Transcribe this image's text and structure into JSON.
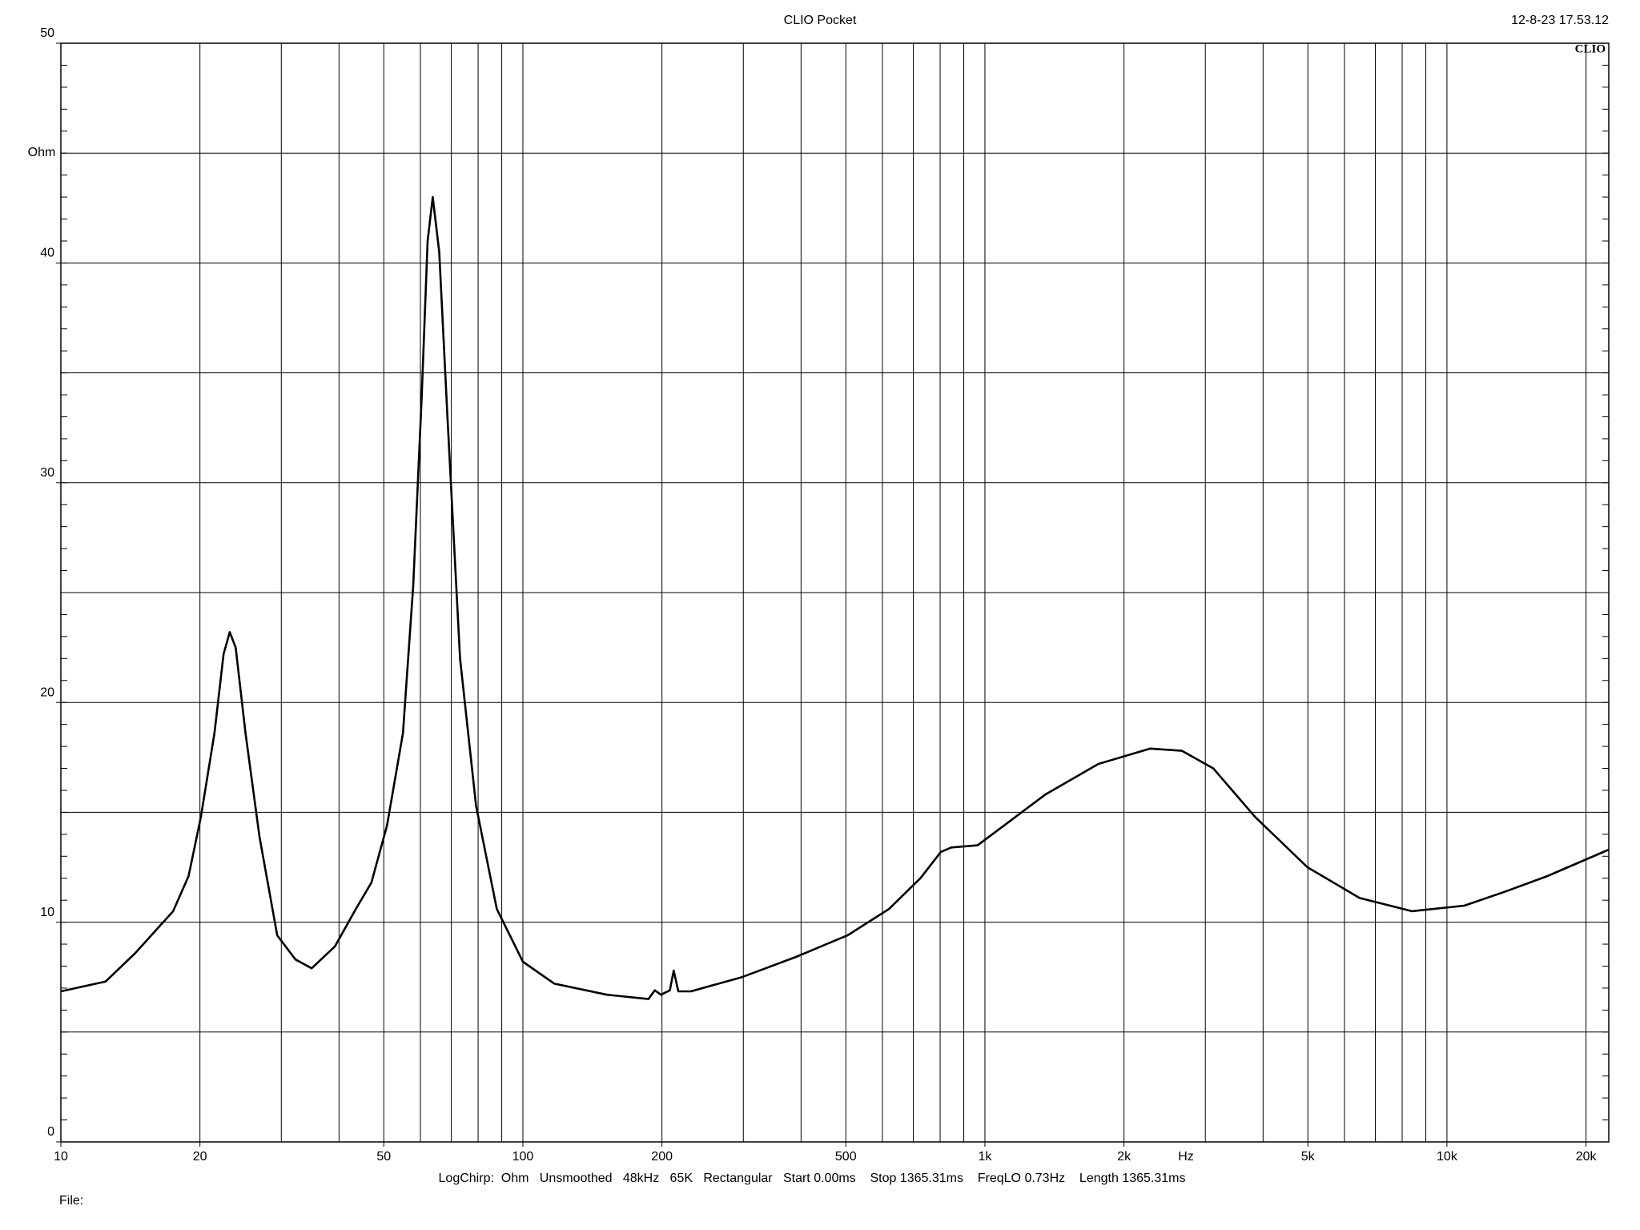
{
  "chart_data": {
    "type": "line",
    "title": "CLIO Pocket",
    "timestamp": "12-8-23 17.53.12",
    "logo": "CLIO",
    "x_label": "Hz",
    "y_label": "Ohm",
    "footer": "LogChirp:  Ohm   Unsmoothed   48kHz   65K   Rectangular   Start 0.00ms    Stop 1365.31ms    FreqLO 0.73Hz    Length 1365.31ms",
    "file_label": "File:",
    "x_scale": "log",
    "xlim": [
      10,
      22400
    ],
    "ylim": [
      0,
      50
    ],
    "xticks": [
      10,
      20,
      50,
      100,
      200,
      500,
      {
        "value": 1000,
        "label": "1k"
      },
      {
        "value": 2000,
        "label": "2k"
      },
      {
        "value": 5000,
        "label": "5k"
      },
      {
        "value": 10000,
        "label": "10k"
      },
      {
        "value": 20000,
        "label": "20k"
      }
    ],
    "xgrid": [
      20,
      30,
      40,
      50,
      60,
      70,
      80,
      90,
      100,
      200,
      300,
      400,
      500,
      600,
      700,
      800,
      900,
      1000,
      2000,
      3000,
      4000,
      5000,
      6000,
      7000,
      8000,
      9000,
      10000,
      20000
    ],
    "yticks": [
      0,
      10,
      20,
      30,
      40,
      50
    ],
    "ygrid": [
      5,
      10,
      15,
      20,
      25,
      30,
      35,
      40,
      45
    ],
    "yminor_step": 1,
    "grid": true,
    "series": [
      {
        "color": "#000000",
        "x": [
          10,
          12.5,
          14.5,
          17.5,
          18.9,
          20.1,
          21.5,
          22.5,
          23.2,
          23.9,
          25.1,
          26.9,
          29.4,
          32.2,
          34.9,
          39.2,
          43.5,
          47,
          50.8,
          55,
          57.9,
          60.4,
          62.2,
          63.8,
          65.9,
          68.7,
          73.1,
          79.2,
          87.8,
          100,
          117,
          152,
          187,
          193,
          199,
          208,
          212,
          217,
          231,
          298,
          388,
          504,
          620,
          725,
          803,
          846,
          964,
          1100,
          1350,
          1760,
          2280,
          2670,
          3120,
          3840,
          4990,
          6470,
          8400,
          10900,
          13400,
          16500,
          22400
        ],
        "values": [
          6.85,
          7.3,
          8.6,
          10.5,
          12.1,
          14.8,
          18.6,
          22.2,
          23.2,
          22.5,
          18.6,
          13.9,
          9.4,
          8.3,
          7.9,
          8.9,
          10.6,
          11.8,
          14.4,
          18.6,
          25.3,
          33.9,
          41.0,
          43.0,
          40.5,
          32.9,
          22.0,
          15.3,
          10.6,
          8.2,
          7.2,
          6.7,
          6.5,
          6.9,
          6.7,
          6.9,
          7.8,
          6.85,
          6.85,
          7.5,
          8.4,
          9.4,
          10.6,
          12.0,
          13.2,
          13.4,
          13.5,
          14.4,
          15.8,
          17.2,
          17.9,
          17.8,
          17.0,
          14.8,
          12.5,
          11.1,
          10.5,
          10.75,
          11.4,
          12.1,
          13.3
        ]
      }
    ]
  }
}
